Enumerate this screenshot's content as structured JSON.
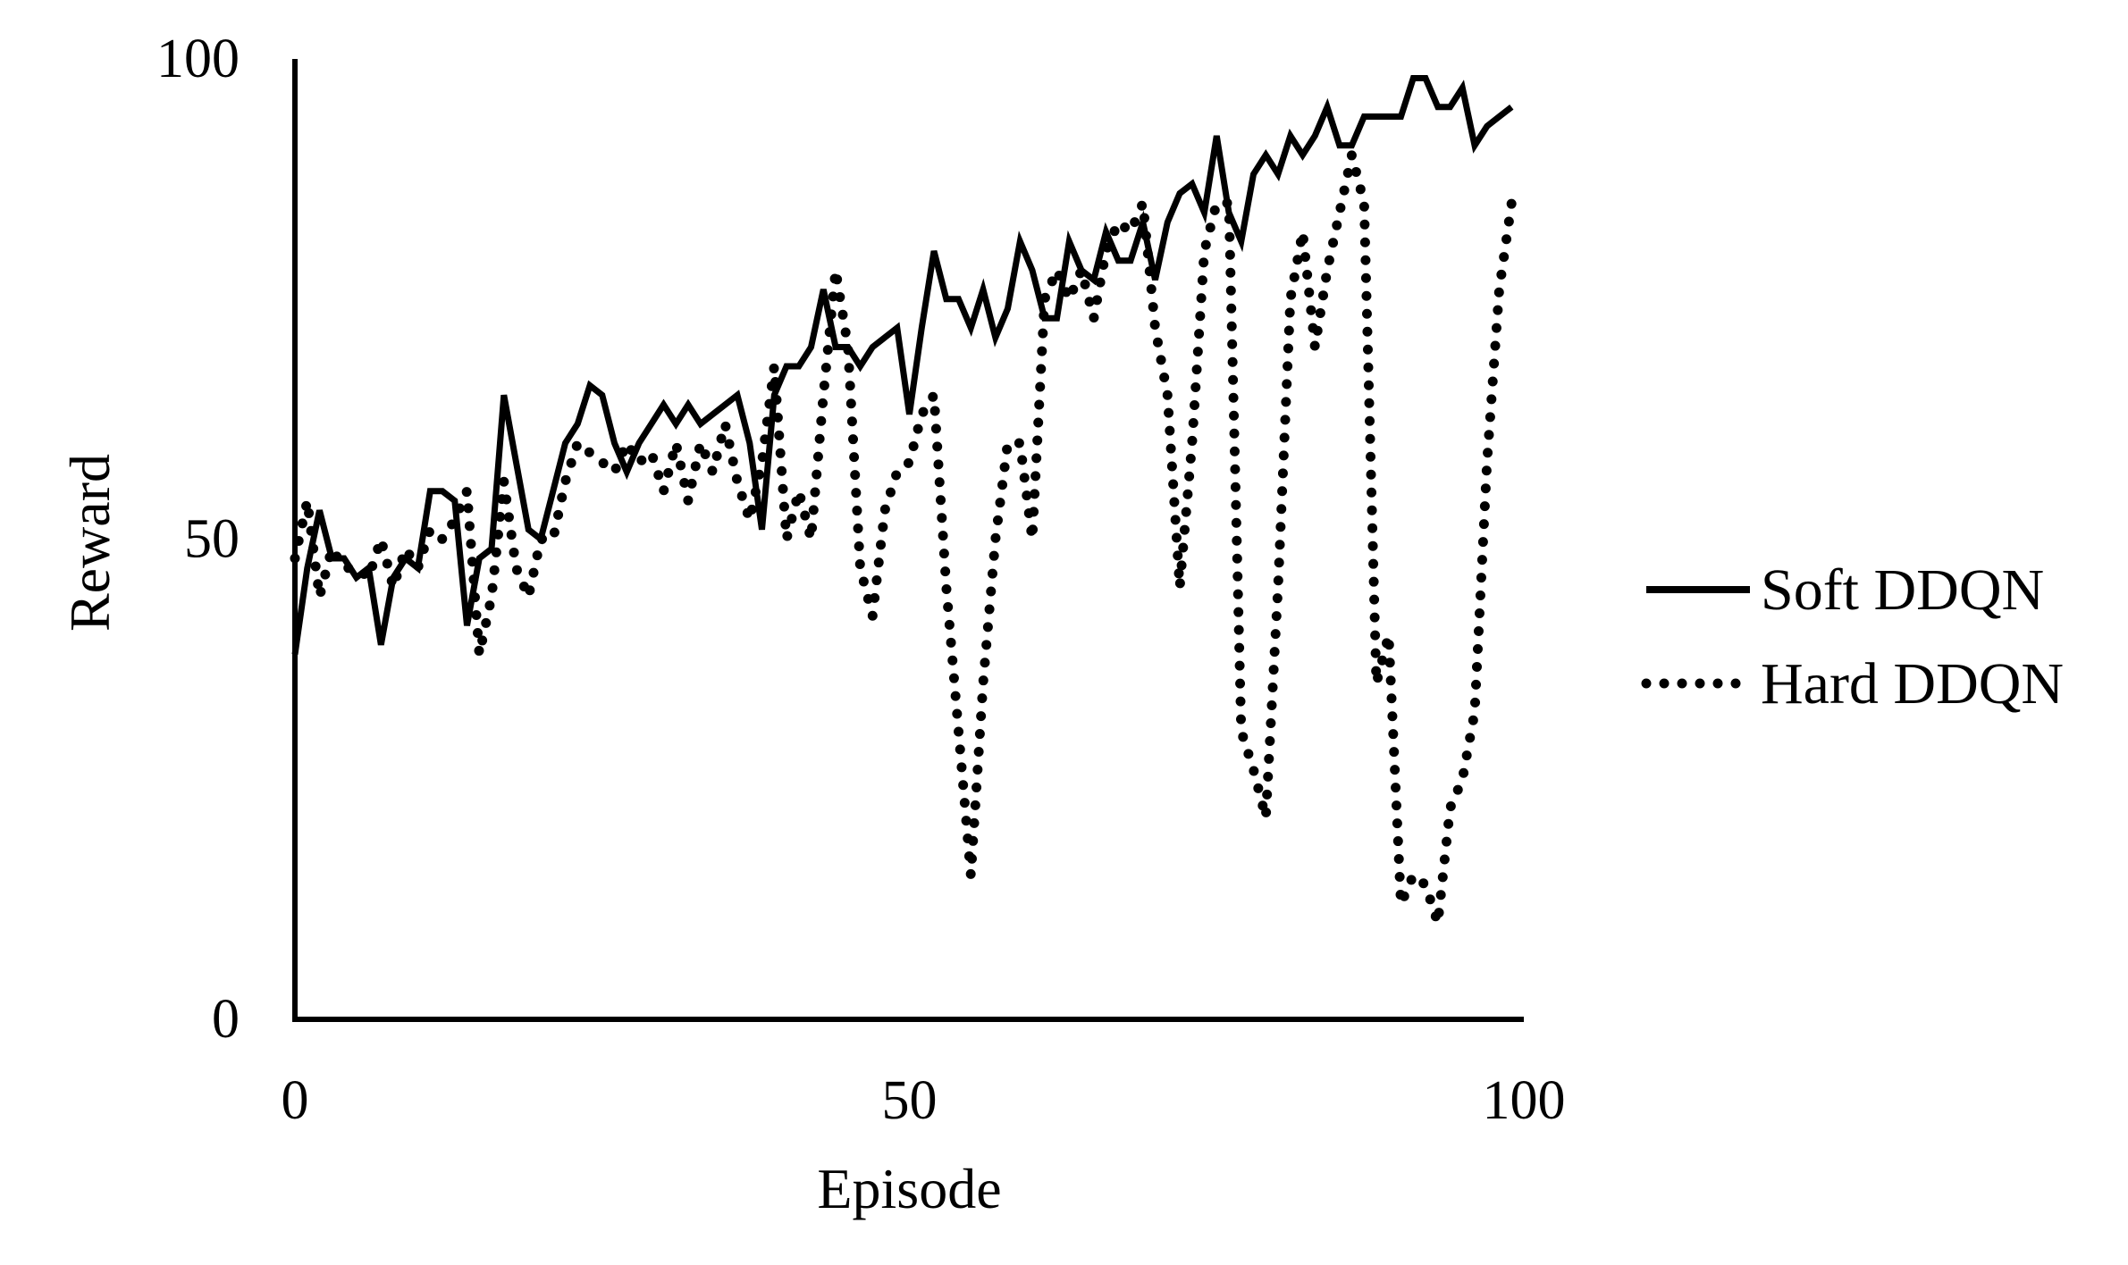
{
  "chart_data": {
    "type": "line",
    "title": "",
    "xlabel": "Episode",
    "ylabel": "Reward",
    "xlim": [
      0,
      100
    ],
    "ylim": [
      0,
      100
    ],
    "x_ticks": [
      0,
      50,
      100
    ],
    "y_ticks": [
      0,
      50,
      100
    ],
    "grid": false,
    "legend_position": "right",
    "colors": {
      "soft": "#000000",
      "hard": "#000000",
      "axis": "#000000"
    },
    "series": [
      {
        "name": "Soft DDQN",
        "style": "solid",
        "x": [
          0,
          1,
          2,
          3,
          4,
          5,
          6,
          7,
          8,
          9,
          10,
          11,
          12,
          13,
          14,
          15,
          16,
          17,
          18,
          19,
          20,
          21,
          22,
          23,
          24,
          25,
          26,
          27,
          28,
          29,
          30,
          31,
          32,
          33,
          34,
          35,
          36,
          37,
          38,
          39,
          40,
          41,
          42,
          43,
          44,
          45,
          46,
          47,
          48,
          49,
          50,
          51,
          52,
          53,
          54,
          55,
          56,
          57,
          58,
          59,
          60,
          61,
          62,
          63,
          64,
          65,
          66,
          67,
          68,
          69,
          70,
          71,
          72,
          73,
          74,
          75,
          76,
          77,
          78,
          79,
          80,
          81,
          82,
          83,
          84,
          85,
          86,
          87,
          88,
          89,
          90,
          91,
          92,
          93,
          94,
          95,
          96,
          97,
          98,
          99
        ],
        "values": [
          38,
          47,
          53,
          48,
          48,
          46,
          47,
          39,
          46,
          48,
          47,
          55,
          55,
          54,
          41,
          48,
          49,
          65,
          58,
          51,
          50,
          55,
          60,
          62,
          66,
          65,
          60,
          57,
          60,
          62,
          64,
          62,
          64,
          62,
          63,
          64,
          65,
          60,
          51,
          65,
          68,
          68,
          70,
          76,
          70,
          70,
          68,
          70,
          71,
          72,
          63,
          72,
          80,
          75,
          75,
          72,
          76,
          71,
          74,
          81,
          78,
          73,
          73,
          81,
          78,
          77,
          82,
          79,
          79,
          83,
          77,
          83,
          86,
          87,
          84,
          92,
          84,
          81,
          88,
          90,
          88,
          92,
          90,
          92,
          95,
          91,
          91,
          94,
          94,
          94,
          94,
          98,
          98,
          95,
          95,
          97,
          91,
          93,
          94,
          95
        ]
      },
      {
        "name": "Hard DDQN",
        "style": "dotted",
        "x": [
          0,
          1,
          2,
          3,
          4,
          5,
          6,
          7,
          8,
          9,
          10,
          11,
          12,
          13,
          14,
          15,
          16,
          17,
          18,
          19,
          20,
          21,
          22,
          23,
          24,
          25,
          26,
          27,
          28,
          29,
          30,
          31,
          32,
          33,
          34,
          35,
          36,
          37,
          38,
          39,
          40,
          41,
          42,
          43,
          44,
          45,
          46,
          47,
          48,
          49,
          50,
          51,
          52,
          53,
          54,
          55,
          56,
          57,
          58,
          59,
          60,
          61,
          62,
          63,
          64,
          65,
          66,
          67,
          68,
          69,
          70,
          71,
          72,
          73,
          74,
          75,
          76,
          77,
          78,
          79,
          80,
          81,
          82,
          83,
          84,
          85,
          86,
          87,
          88,
          89,
          90,
          91,
          92,
          93,
          94,
          95,
          96,
          97,
          98,
          99
        ],
        "values": [
          48,
          54,
          44,
          49,
          47,
          47,
          46,
          50,
          45,
          49,
          47,
          51,
          50,
          52,
          55,
          38,
          44,
          56,
          47,
          44,
          50,
          50,
          56,
          60,
          59,
          58,
          57,
          60,
          58,
          59,
          55,
          60,
          54,
          60,
          57,
          62,
          56,
          52,
          58,
          68,
          50,
          55,
          50,
          65,
          78,
          70,
          47,
          42,
          53,
          57,
          58,
          63,
          65,
          45,
          30,
          15,
          35,
          50,
          60,
          60,
          50,
          75,
          78,
          75,
          78,
          73,
          80,
          83,
          82,
          85,
          72,
          65,
          45,
          60,
          80,
          85,
          85,
          30,
          26,
          21,
          45,
          75,
          82,
          70,
          78,
          84,
          90,
          85,
          35,
          40,
          12,
          15,
          14,
          10,
          22,
          25,
          32,
          58,
          76,
          85
        ]
      }
    ]
  }
}
